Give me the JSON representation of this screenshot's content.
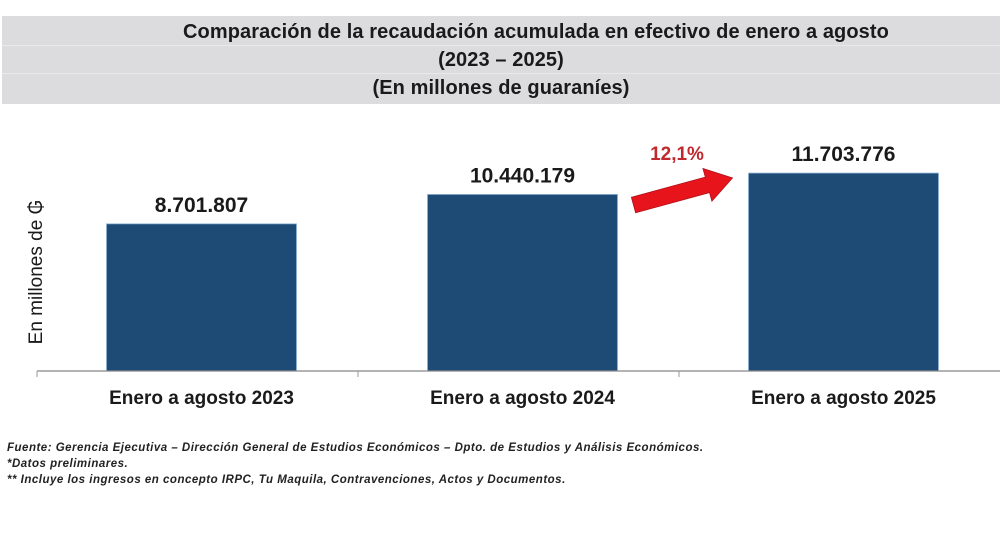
{
  "chart_data": {
    "type": "bar",
    "title": "Comparación de la recaudación acumulada en efectivo de enero a agosto",
    "subtitle_lines": [
      "(2023 – 2025)",
      "(En millones de guaraníes)"
    ],
    "xlabel": "",
    "ylabel": "En millones de ₲",
    "categories": [
      "Enero a agosto 2023",
      "Enero a agosto 2024",
      "Enero a agosto 2025"
    ],
    "values": [
      8701807,
      10440179,
      11703776
    ],
    "data_labels": [
      "8.701.807",
      "10.440.179",
      "11.703.776"
    ],
    "ylim": [
      0,
      14250000
    ],
    "grid": false,
    "legend": "none",
    "bar_color": "#1d4b76",
    "annotations": [
      {
        "type": "arrow",
        "text": "12,1%",
        "from_category": "Enero a agosto 2024",
        "to_category": "Enero a agosto 2025",
        "color": "#e8141b",
        "text_color": "#c0282d"
      }
    ]
  },
  "footnotes": [
    "Fuente: Gerencia Ejecutiva – Dirección General de Estudios Económicos – Dpto. de Estudios y Análisis Económicos.",
    "*Datos preliminares.",
    "** Incluye los ingresos en concepto IRPC, Tu Maquila, Contravenciones, Actos y Documentos."
  ]
}
